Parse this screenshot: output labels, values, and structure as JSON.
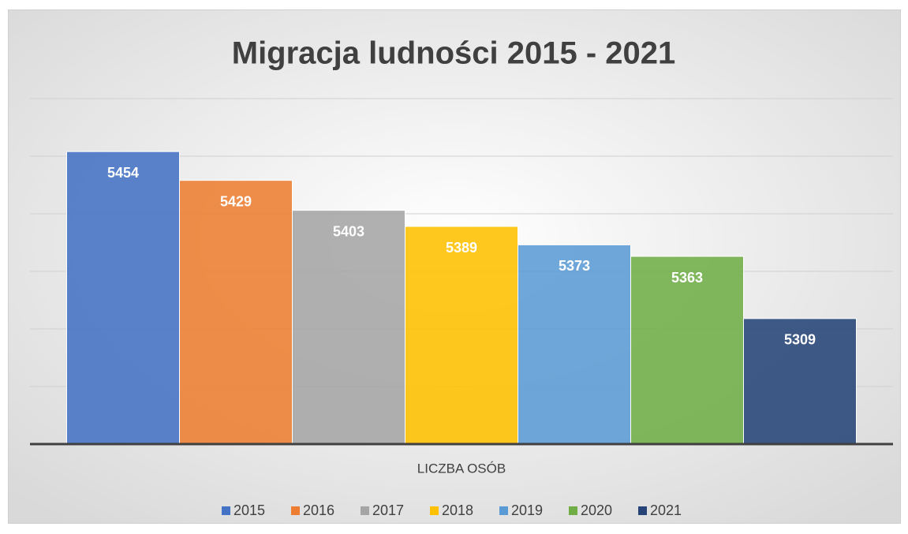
{
  "chart_data": {
    "type": "bar",
    "title": "Migracja ludności 2015 - 2021",
    "categories": [
      "LICZBA OSÓB"
    ],
    "series": [
      {
        "name": "2015",
        "color": "#4472c4",
        "values": [
          5454
        ]
      },
      {
        "name": "2016",
        "color": "#ed7d31",
        "values": [
          5429
        ]
      },
      {
        "name": "2017",
        "color": "#a5a5a5",
        "values": [
          5403
        ]
      },
      {
        "name": "2018",
        "color": "#ffc000",
        "values": [
          5389
        ]
      },
      {
        "name": "2019",
        "color": "#5b9bd5",
        "values": [
          5373
        ]
      },
      {
        "name": "2020",
        "color": "#70ad47",
        "values": [
          5363
        ]
      },
      {
        "name": "2021",
        "color": "#264478",
        "values": [
          5309
        ]
      }
    ],
    "ylim": [
      5200,
      5500
    ],
    "yticks": [
      5200,
      5250,
      5300,
      5350,
      5400,
      5450,
      5500
    ],
    "grid": true,
    "legend": "bottom"
  }
}
